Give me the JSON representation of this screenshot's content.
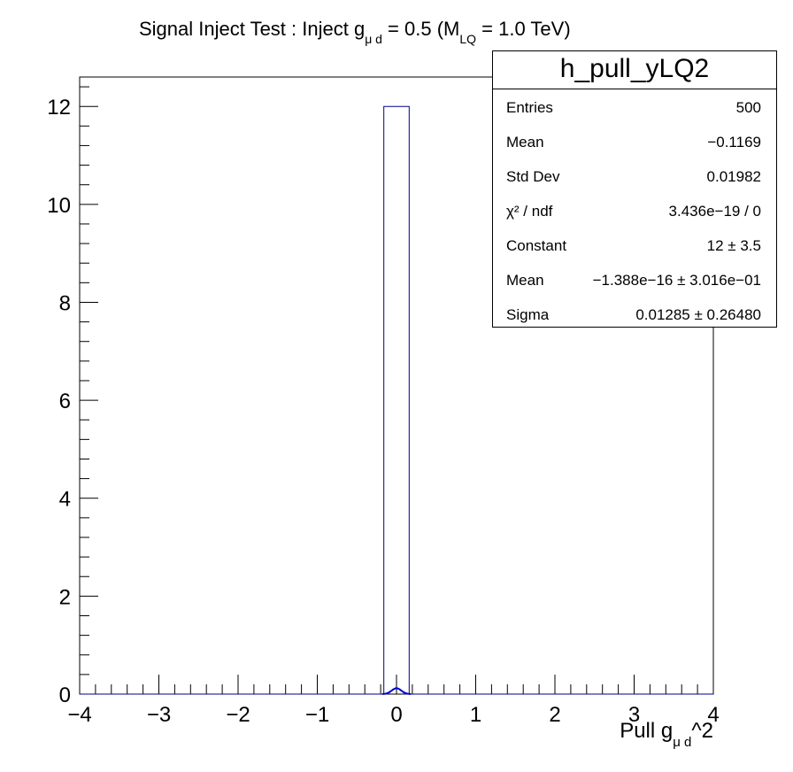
{
  "chart_data": {
    "type": "bar",
    "title": {
      "main": "Signal Inject Test : Inject g",
      "sub1": "μ d",
      "mid": " = 0.5 (M",
      "sub2": "LQ",
      "end": " = 1.0 TeV)"
    },
    "xlabel": {
      "main": "Pull g",
      "sub": "μ d",
      "end": "^2"
    },
    "ylabel": "",
    "xlim": [
      -4,
      4
    ],
    "ylim": [
      0,
      12.6
    ],
    "xticks": [
      "−4",
      "−3",
      "−2",
      "−1",
      "0",
      "1",
      "2",
      "3",
      "4"
    ],
    "xtick_values": [
      -4,
      -3,
      -2,
      -1,
      0,
      1,
      2,
      3,
      4
    ],
    "yticks": [
      "0",
      "2",
      "4",
      "6",
      "8",
      "10",
      "12"
    ],
    "ytick_values": [
      0,
      2,
      4,
      6,
      8,
      10,
      12
    ],
    "histogram": {
      "bin_low": -0.16,
      "bin_high": 0.16,
      "value": 12,
      "color": "#00008b"
    },
    "fit": {
      "type": "gaussian",
      "constant": 12,
      "mean": 0,
      "sigma": 0.01285,
      "color": "#0000cc"
    },
    "grid": false,
    "legend": "top-right stats box"
  },
  "stats": {
    "name": "h_pull_yLQ2",
    "rows": [
      {
        "key": "Entries",
        "value": "500"
      },
      {
        "key": "Mean",
        "value": "−0.1169"
      },
      {
        "key": "Std Dev",
        "value": "0.01982"
      },
      {
        "key": "χ² / ndf",
        "value": "3.436e−19 / 0"
      },
      {
        "key": "Constant",
        "value": "12 ± 3.5"
      },
      {
        "key": "Mean",
        "value": "−1.388e−16 ± 3.016e−01"
      },
      {
        "key": "Sigma",
        "value": "0.01285 ± 0.26480"
      }
    ]
  }
}
